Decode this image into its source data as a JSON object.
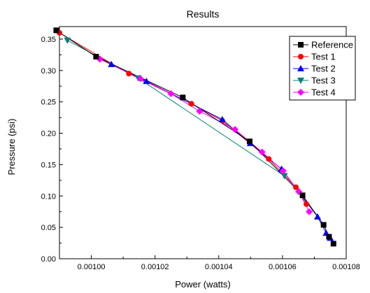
{
  "chart_data": {
    "type": "line",
    "title": "Results",
    "xlabel": "Power (watts)",
    "ylabel": "Pressure (psi)",
    "xlim": [
      0.00099,
      0.00108
    ],
    "ylim": [
      0.0,
      0.37
    ],
    "x_ticks": [
      0.001,
      0.00102,
      0.00104,
      0.00106,
      0.00108
    ],
    "x_tick_labels": [
      "0.00100",
      "0.00102",
      "0.00104",
      "0.00106",
      "0.00108"
    ],
    "y_ticks": [
      0.0,
      0.05,
      0.1,
      0.15,
      0.2,
      0.25,
      0.3,
      0.35
    ],
    "y_tick_labels": [
      "0.00",
      "0.05",
      "0.10",
      "0.15",
      "0.20",
      "0.25",
      "0.30",
      "0.35"
    ],
    "grid": false,
    "legend_position": "top-right",
    "series": [
      {
        "name": "Reference",
        "color": "#000000",
        "marker": "square",
        "x": [
          0.000989,
          0.0010015,
          0.0010287,
          0.0010497,
          0.0010663,
          0.0010729,
          0.0010746,
          0.001076
        ],
        "y": [
          0.364,
          0.322,
          0.257,
          0.187,
          0.101,
          0.054,
          0.035,
          0.024
        ]
      },
      {
        "name": "Test 1",
        "color": "#ff0000",
        "marker": "circle",
        "x": [
          0.00099,
          0.0010118,
          0.0010314,
          0.0010411,
          0.0010557,
          0.0010642,
          0.0010675
        ],
        "y": [
          0.36,
          0.295,
          0.247,
          0.22,
          0.159,
          0.114,
          0.087
        ]
      },
      {
        "name": "Test 2",
        "color": "#0000ff",
        "marker": "triangle-up",
        "x": [
          0.0010063,
          0.0010173,
          0.0010411,
          0.0010499,
          0.0010597,
          0.001071,
          0.0010737,
          0.001075
        ],
        "y": [
          0.31,
          0.283,
          0.222,
          0.184,
          0.143,
          0.067,
          0.041,
          0.033
        ]
      },
      {
        "name": "Test 3",
        "color": "#008080",
        "marker": "triangle-down",
        "x": [
          0.0009925,
          0.0010147,
          0.0010606
        ],
        "y": [
          0.348,
          0.288,
          0.132
        ]
      },
      {
        "name": "Test 4",
        "color": "#ff00ff",
        "marker": "diamond",
        "x": [
          0.0010027,
          0.0010154,
          0.001025,
          0.001034,
          0.0010451,
          0.0010536,
          0.0010602,
          0.0010651,
          0.0010684
        ],
        "y": [
          0.318,
          0.287,
          0.263,
          0.235,
          0.206,
          0.17,
          0.14,
          0.107,
          0.075
        ]
      }
    ]
  }
}
